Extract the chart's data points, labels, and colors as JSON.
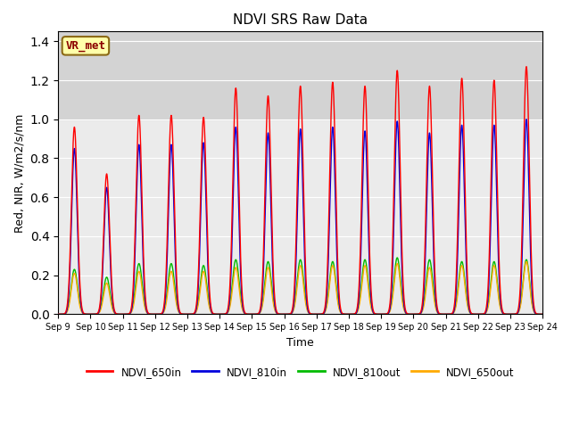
{
  "title": "NDVI SRS Raw Data",
  "ylabel": "Red, NIR, W/m2/s/nm",
  "xlabel": "Time",
  "annotation": "VR_met",
  "ylim": [
    0.0,
    1.45
  ],
  "legend": [
    "NDVI_650in",
    "NDVI_810in",
    "NDVI_810out",
    "NDVI_650out"
  ],
  "colors": [
    "#ff0000",
    "#0000dd",
    "#00bb00",
    "#ffaa00"
  ],
  "gray_band_lo": 1.0,
  "background_color": "#ebebeb",
  "tick_dates": [
    "Sep 9",
    "Sep 10",
    "Sep 11",
    "Sep 12",
    "Sep 13",
    "Sep 14",
    "Sep 15",
    "Sep 16",
    "Sep 17",
    "Sep 18",
    "Sep 19",
    "Sep 20",
    "Sep 21",
    "Sep 22",
    "Sep 23",
    "Sep 24"
  ],
  "peak_650in": [
    0.96,
    0.72,
    1.02,
    1.02,
    1.01,
    1.16,
    1.12,
    1.17,
    1.19,
    1.17,
    1.25,
    1.17,
    1.21,
    1.2,
    1.27
  ],
  "peak_810in": [
    0.85,
    0.65,
    0.87,
    0.87,
    0.88,
    0.96,
    0.93,
    0.95,
    0.96,
    0.94,
    0.99,
    0.93,
    0.97,
    0.97,
    1.0
  ],
  "peak_810out": [
    0.23,
    0.19,
    0.26,
    0.26,
    0.25,
    0.28,
    0.27,
    0.28,
    0.27,
    0.28,
    0.29,
    0.28,
    0.27,
    0.27,
    0.28
  ],
  "peak_650out": [
    0.21,
    0.16,
    0.22,
    0.22,
    0.22,
    0.24,
    0.24,
    0.25,
    0.25,
    0.25,
    0.26,
    0.24,
    0.25,
    0.25,
    0.27
  ]
}
